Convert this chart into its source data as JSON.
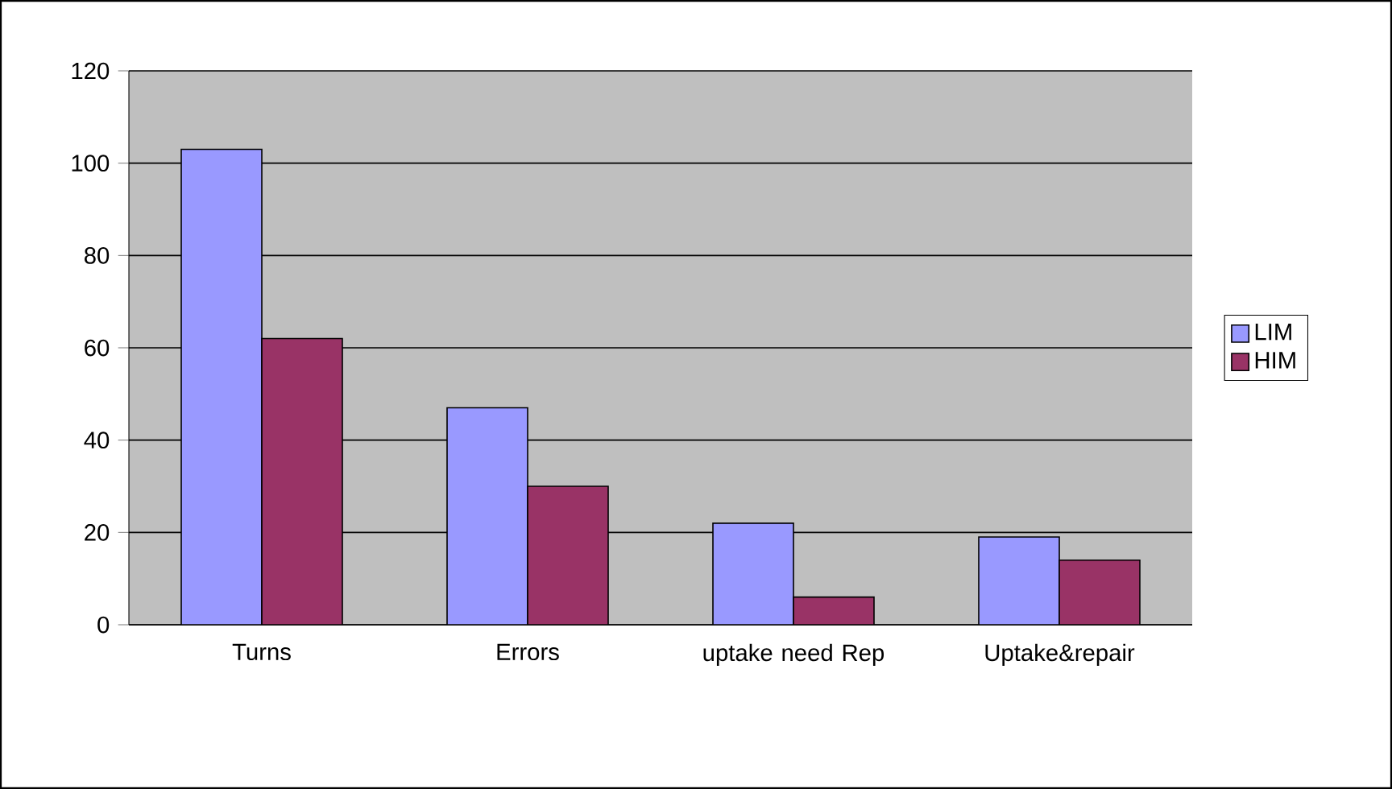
{
  "chart_data": {
    "type": "bar",
    "categories": [
      "Turns",
      "Errors",
      "uptake need Rep",
      "Uptake&repair"
    ],
    "series": [
      {
        "name": "LIM",
        "color": "#9999ff",
        "values": [
          103,
          47,
          22,
          19
        ]
      },
      {
        "name": "HIM",
        "color": "#993366",
        "values": [
          62,
          30,
          6,
          14
        ]
      }
    ],
    "ylim": [
      0,
      120
    ],
    "yticks": [
      0,
      20,
      40,
      60,
      80,
      100,
      120
    ],
    "grid": "y",
    "legend": "right"
  }
}
